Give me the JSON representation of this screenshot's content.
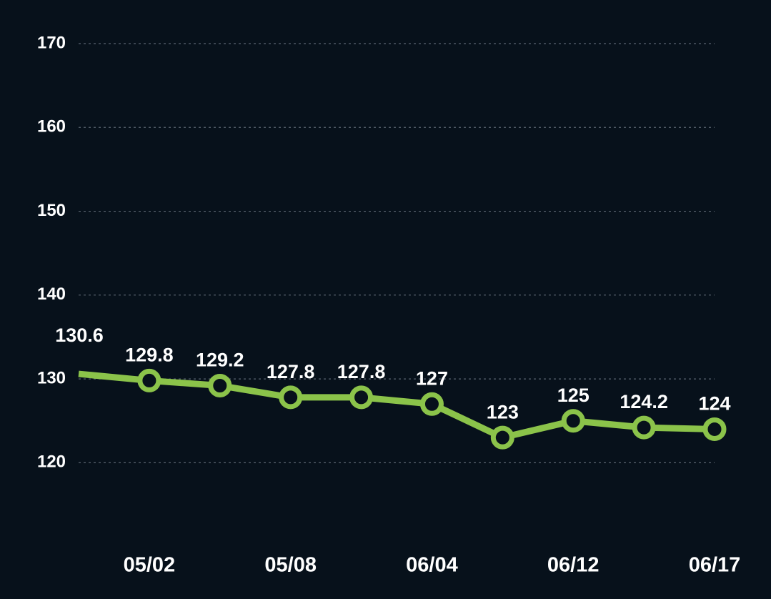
{
  "chart_data": {
    "type": "line",
    "categories": [
      null,
      "05/02",
      null,
      "05/08",
      null,
      "06/04",
      null,
      "06/12",
      null,
      "06/17"
    ],
    "series": [
      {
        "color": "#8bc34a",
        "values": [
          130.6,
          129.8,
          129.2,
          127.8,
          127.8,
          127,
          123,
          125,
          124.2,
          124
        ]
      }
    ],
    "ylim": [
      115,
      170
    ],
    "yticks": [
      120,
      130,
      140,
      150,
      160,
      170
    ],
    "grid": true
  }
}
